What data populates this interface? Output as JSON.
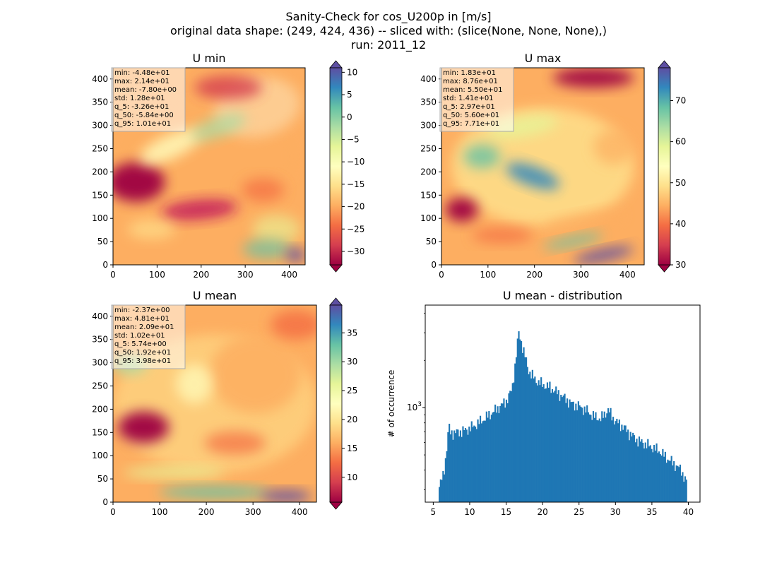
{
  "figure": {
    "title_lines": [
      "Sanity-Check for cos_U200p in [m/s]",
      "original data shape: (249, 424, 436) -- sliced with: (slice(None, None, None),)",
      "run: 2011_12"
    ]
  },
  "chart_data": [
    {
      "type": "heatmap",
      "title": "U min",
      "xlim": [
        0,
        436
      ],
      "ylim": [
        0,
        424
      ],
      "xticks": [
        0,
        100,
        200,
        300,
        400
      ],
      "yticks": [
        0,
        50,
        100,
        150,
        200,
        250,
        300,
        350,
        400
      ],
      "colormap": "Spectral",
      "colorbar": {
        "vmin": -33,
        "vmax": 11,
        "ticks": [
          10,
          5,
          0,
          -5,
          -10,
          -15,
          -20,
          -25,
          -30
        ],
        "tick_labels": [
          "10",
          "5",
          "0",
          "−5",
          "−10",
          "−15",
          "−20",
          "−25",
          "−30"
        ],
        "extend": "both"
      },
      "stats": [
        "min: -4.48e+01",
        "max: 2.14e+01",
        "mean: -7.80e+00",
        "std: 1.28e+01",
        "q_5: -3.26e+01",
        "q_50: -5.84e+00",
        "q_95: 1.01e+01"
      ]
    },
    {
      "type": "heatmap",
      "title": "U max",
      "xlim": [
        0,
        436
      ],
      "ylim": [
        0,
        424
      ],
      "xticks": [
        0,
        100,
        200,
        300,
        400
      ],
      "yticks": [
        0,
        50,
        100,
        150,
        200,
        250,
        300,
        350,
        400
      ],
      "colormap": "Spectral",
      "colorbar": {
        "vmin": 30,
        "vmax": 78,
        "ticks": [
          70,
          60,
          50,
          40,
          30
        ],
        "tick_labels": [
          "70",
          "60",
          "50",
          "40",
          "30"
        ],
        "extend": "both"
      },
      "stats": [
        "min: 1.83e+01",
        "max: 8.76e+01",
        "mean: 5.50e+01",
        "std: 1.41e+01",
        "q_5: 2.97e+01",
        "q_50: 5.60e+01",
        "q_95: 7.71e+01"
      ]
    },
    {
      "type": "heatmap",
      "title": "U mean",
      "xlim": [
        0,
        436
      ],
      "ylim": [
        0,
        424
      ],
      "xticks": [
        0,
        100,
        200,
        300,
        400
      ],
      "yticks": [
        0,
        50,
        100,
        150,
        200,
        250,
        300,
        350,
        400
      ],
      "colormap": "Spectral",
      "colorbar": {
        "vmin": 5.7,
        "vmax": 39.8,
        "ticks": [
          35,
          30,
          25,
          20,
          15,
          10
        ],
        "tick_labels": [
          "35",
          "30",
          "25",
          "20",
          "15",
          "10"
        ],
        "extend": "both"
      },
      "stats": [
        "min: -2.37e+00",
        "max: 4.81e+01",
        "mean: 2.09e+01",
        "std: 1.02e+01",
        "q_5: 5.74e+00",
        "q_50: 1.92e+01",
        "q_95: 3.98e+01"
      ]
    },
    {
      "type": "bar",
      "title": "U mean - distribution",
      "xlabel": "",
      "ylabel": "# of occurrence",
      "xlim": [
        3.9,
        41.6
      ],
      "xticks": [
        5,
        10,
        15,
        20,
        25,
        30,
        35,
        40
      ],
      "yscale": "log",
      "ylim": [
        250,
        4500
      ],
      "yticks": [
        1000
      ],
      "ytick_labels": [
        "10",
        "3"
      ],
      "color": "#1f77b4",
      "bins": {
        "start": 5.74,
        "end": 39.8,
        "profile": [
          [
            5.7,
            300
          ],
          [
            6.0,
            330
          ],
          [
            6.4,
            380
          ],
          [
            6.7,
            480
          ],
          [
            6.95,
            600
          ],
          [
            7.1,
            780
          ],
          [
            7.3,
            700
          ],
          [
            7.8,
            690
          ],
          [
            8.5,
            700
          ],
          [
            9.5,
            720
          ],
          [
            10.5,
            760
          ],
          [
            12,
            850
          ],
          [
            13.5,
            960
          ],
          [
            15,
            1100
          ],
          [
            15.8,
            1300
          ],
          [
            16.3,
            2000
          ],
          [
            16.7,
            3000
          ],
          [
            17,
            2700
          ],
          [
            17.5,
            2200
          ],
          [
            18,
            1750
          ],
          [
            19,
            1500
          ],
          [
            20,
            1400
          ],
          [
            21,
            1350
          ],
          [
            22,
            1250
          ],
          [
            23,
            1150
          ],
          [
            24,
            1060
          ],
          [
            25,
            1020
          ],
          [
            26,
            960
          ],
          [
            27,
            880
          ],
          [
            28,
            850
          ],
          [
            29,
            970
          ],
          [
            29.5,
            880
          ],
          [
            30,
            820
          ],
          [
            31,
            760
          ],
          [
            32,
            680
          ],
          [
            33,
            620
          ],
          [
            34,
            590
          ],
          [
            35,
            560
          ],
          [
            36,
            530
          ],
          [
            37,
            480
          ],
          [
            38,
            440
          ],
          [
            39,
            400
          ],
          [
            39.8,
            330
          ]
        ]
      }
    }
  ]
}
